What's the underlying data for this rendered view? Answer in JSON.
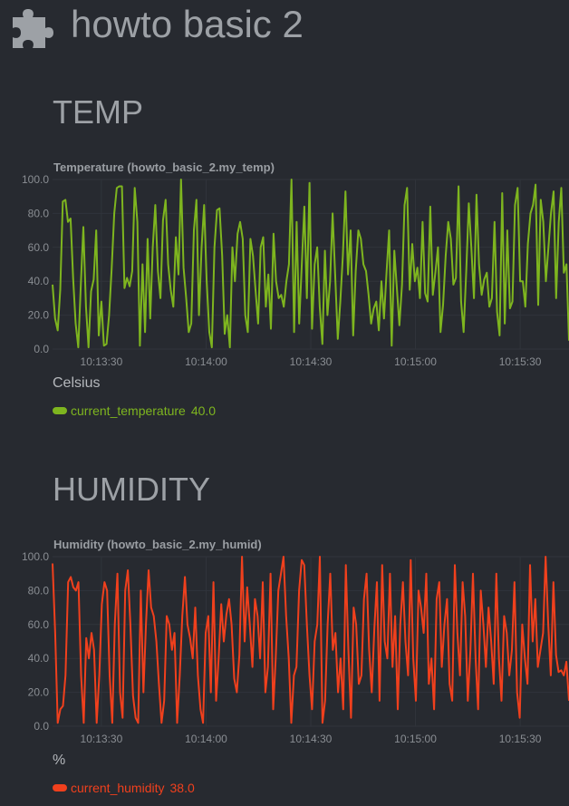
{
  "header": {
    "title": "howto basic 2",
    "icon": "puzzle-icon"
  },
  "sections": [
    {
      "title": "TEMP",
      "chart_title": "Temperature (howto_basic_2.my_temp)",
      "unit": "Celsius",
      "legend": {
        "name": "current_temperature",
        "value": "40.0",
        "color": "#7eb51f"
      }
    },
    {
      "title": "HUMIDITY",
      "chart_title": "Humidity (howto_basic_2.my_humid)",
      "unit": "%",
      "legend": {
        "name": "current_humidity",
        "value": "38.0",
        "color": "#f0401d"
      }
    }
  ],
  "colors": {
    "background": "#272a30",
    "temperature": "#7eb51f",
    "humidity": "#f0401d",
    "grid": "#30343b"
  },
  "chart_data": [
    {
      "type": "line",
      "title": "Temperature (howto_basic_2.my_temp)",
      "ylabel": "Celsius",
      "ylim": [
        0,
        100
      ],
      "y_ticks": [
        "0.0",
        "20.0",
        "40.0",
        "60.0",
        "80.0",
        "100.0"
      ],
      "x_ticks": [
        "10:13:30",
        "10:14:00",
        "10:14:30",
        "10:15:00",
        "10:15:30"
      ],
      "x_range": [
        "10:13:16",
        "10:15:44"
      ],
      "series": [
        {
          "name": "current_temperature",
          "color": "#7eb51f",
          "values": [
            38,
            18,
            11,
            35,
            87,
            88,
            75,
            77,
            42,
            15,
            1,
            38,
            72,
            25,
            1,
            34,
            41,
            70,
            8,
            28,
            2,
            3,
            20,
            47,
            80,
            95,
            96,
            96,
            36,
            42,
            37,
            46,
            95,
            75,
            2,
            50,
            10,
            65,
            18,
            60,
            85,
            46,
            30,
            76,
            88,
            50,
            35,
            25,
            66,
            44,
            100,
            48,
            30,
            10,
            15,
            70,
            88,
            20,
            60,
            85,
            40,
            10,
            1,
            60,
            82,
            83,
            55,
            9,
            20,
            1,
            60,
            40,
            68,
            75,
            65,
            20,
            10,
            65,
            55,
            35,
            15,
            60,
            66,
            25,
            44,
            12,
            68,
            40,
            30,
            32,
            25,
            40,
            50,
            100,
            10,
            75,
            15,
            50,
            84,
            30,
            98,
            12,
            50,
            60,
            25,
            3,
            58,
            20,
            40,
            80,
            44,
            6,
            28,
            55,
            93,
            44,
            70,
            8,
            46,
            70,
            65,
            50,
            46,
            32,
            15,
            24,
            28,
            11,
            40,
            18,
            46,
            70,
            2,
            58,
            36,
            14,
            38,
            85,
            95,
            35,
            62,
            40,
            48,
            30,
            75,
            33,
            28,
            84,
            32,
            45,
            60,
            10,
            26,
            55,
            75,
            65,
            38,
            42,
            96,
            28,
            10,
            46,
            86,
            60,
            30,
            91,
            50,
            32,
            41,
            45,
            25,
            30,
            75,
            22,
            8,
            92,
            15,
            70,
            24,
            28,
            85,
            95,
            40,
            40,
            25,
            62,
            80,
            85,
            97,
            26,
            88,
            75,
            40,
            60,
            80,
            93,
            30,
            75,
            95,
            45,
            50,
            5
          ]
        }
      ]
    },
    {
      "type": "line",
      "title": "Humidity (howto_basic_2.my_humid)",
      "ylabel": "%",
      "ylim": [
        0,
        100
      ],
      "y_ticks": [
        "0.0",
        "20.0",
        "40.0",
        "60.0",
        "80.0",
        "100.0"
      ],
      "x_ticks": [
        "10:13:30",
        "10:14:00",
        "10:14:30",
        "10:15:00",
        "10:15:30"
      ],
      "x_range": [
        "10:13:16",
        "10:15:44"
      ],
      "series": [
        {
          "name": "current_humidity",
          "color": "#f0401d",
          "values": [
            96,
            55,
            2,
            10,
            12,
            30,
            85,
            88,
            82,
            80,
            85,
            30,
            2,
            52,
            40,
            55,
            45,
            2,
            30,
            72,
            85,
            80,
            30,
            2,
            60,
            90,
            20,
            5,
            80,
            92,
            60,
            18,
            5,
            2,
            80,
            20,
            60,
            92,
            70,
            65,
            50,
            25,
            2,
            15,
            65,
            60,
            45,
            55,
            2,
            30,
            65,
            88,
            60,
            52,
            40,
            70,
            30,
            10,
            2,
            55,
            65,
            20,
            85,
            15,
            40,
            72,
            50,
            66,
            75,
            60,
            28,
            20,
            42,
            100,
            50,
            82,
            60,
            35,
            75,
            65,
            40,
            85,
            20,
            35,
            90,
            10,
            40,
            80,
            90,
            100,
            65,
            40,
            2,
            30,
            35,
            80,
            98,
            95,
            60,
            30,
            10,
            50,
            60,
            100,
            2,
            15,
            60,
            90,
            45,
            55,
            20,
            40,
            10,
            95,
            45,
            5,
            70,
            60,
            25,
            30,
            75,
            90,
            45,
            20,
            58,
            85,
            15,
            95,
            50,
            40,
            90,
            35,
            65,
            10,
            60,
            85,
            50,
            30,
            98,
            40,
            15,
            80,
            70,
            55,
            90,
            25,
            40,
            10,
            75,
            85,
            35,
            60,
            75,
            25,
            15,
            95,
            55,
            30,
            85,
            65,
            15,
            45,
            90,
            40,
            10,
            80,
            60,
            35,
            70,
            50,
            25,
            90,
            40,
            15,
            65,
            55,
            30,
            45,
            85,
            20,
            5,
            60,
            40,
            25,
            95,
            50,
            75,
            35,
            45,
            55,
            100,
            60,
            30,
            85,
            42,
            32,
            33,
            30,
            38,
            15
          ]
        }
      ]
    }
  ]
}
